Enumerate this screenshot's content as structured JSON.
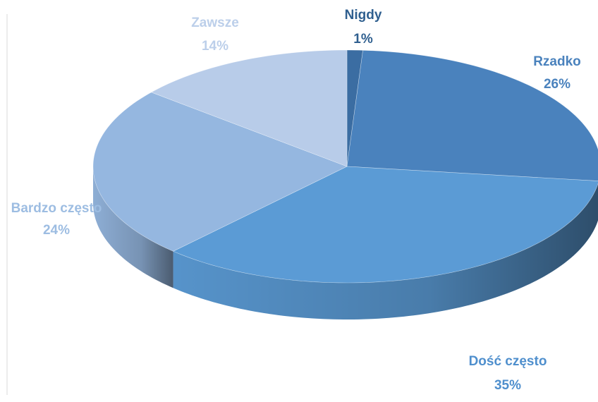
{
  "chart_data": {
    "type": "pie",
    "categories": [
      "Nigdy",
      "Rzadko",
      "Dość często",
      "Bardzo często",
      "Zawsze"
    ],
    "values": [
      1,
      26,
      35,
      24,
      14
    ],
    "value_labels": [
      "1%",
      "26%",
      "35%",
      "24%",
      "14%"
    ],
    "colors": [
      "#3b6da2",
      "#4a82bd",
      "#5b9bd5",
      "#95b7e0",
      "#b8cce9"
    ],
    "label_colors": [
      "#2f5f8f",
      "#4a82bd",
      "#4f8fcd",
      "#9dbde2",
      "#bccfea"
    ]
  }
}
